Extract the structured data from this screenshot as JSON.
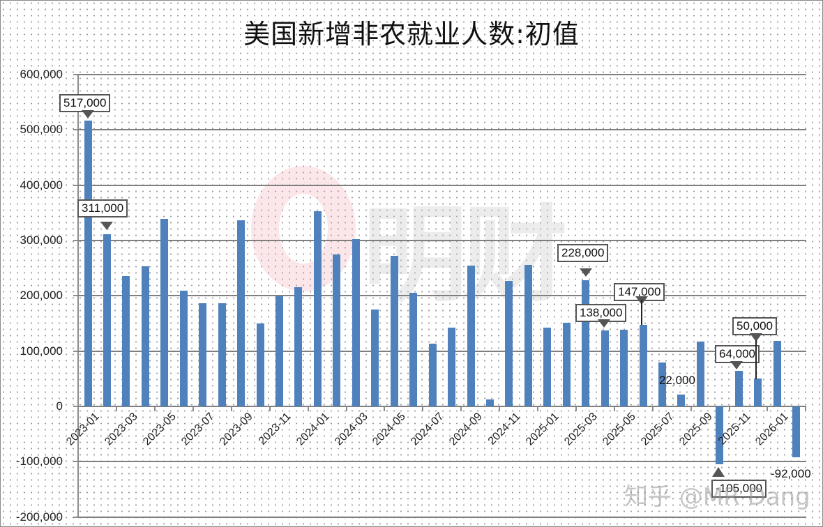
{
  "title": "美国新增非农就业人数:初值",
  "watermarks": {
    "center_text": "明财",
    "bottom_text": "知乎 @MR Dang"
  },
  "colors": {
    "bar": "#4f81bd",
    "grid": "#7f7f7f"
  },
  "y_axis": {
    "ticks": [
      {
        "value": 600000,
        "label": "600,000"
      },
      {
        "value": 500000,
        "label": "500,000"
      },
      {
        "value": 400000,
        "label": "400,000"
      },
      {
        "value": 300000,
        "label": "300,000"
      },
      {
        "value": 200000,
        "label": "200,000"
      },
      {
        "value": 100000,
        "label": "100,000"
      },
      {
        "value": 0,
        "label": "0"
      },
      {
        "value": -100000,
        "label": "-100,000"
      },
      {
        "value": -200000,
        "label": "-200,000"
      }
    ]
  },
  "x_axis": {
    "tick_labels": [
      "2023-01",
      "2023-03",
      "2023-05",
      "2023-07",
      "2023-09",
      "2023-11",
      "2024-01",
      "2024-03",
      "2024-05",
      "2024-07",
      "2024-09",
      "2024-11",
      "2025-01",
      "2025-03",
      "2025-05",
      "2025-07",
      "2025-09",
      "2025-11",
      "2026-01"
    ]
  },
  "annotations": [
    {
      "index": 0,
      "label": "517,000",
      "style": "callout"
    },
    {
      "index": 1,
      "label": "311,000",
      "style": "callout"
    },
    {
      "index": 26,
      "label": "228,000",
      "style": "callout"
    },
    {
      "index": 27,
      "label": "138,000",
      "style": "callout"
    },
    {
      "index": 29,
      "label": "147,000",
      "style": "callout"
    },
    {
      "index": 31,
      "label": "22,000",
      "style": "plain"
    },
    {
      "index": 33,
      "label": "-105,000",
      "style": "callout"
    },
    {
      "index": 34,
      "label": "64,000",
      "style": "callout"
    },
    {
      "index": 35,
      "label": "50,000",
      "style": "callout"
    },
    {
      "index": 37,
      "label": "-92,000",
      "style": "plain"
    }
  ],
  "chart_data": {
    "type": "bar",
    "title": "美国新增非农就业人数:初值",
    "xlabel": "",
    "ylabel": "",
    "ylim": [
      -200000,
      600000
    ],
    "grid": true,
    "legend": "none",
    "categories": [
      "2023-01",
      "2023-02",
      "2023-03",
      "2023-04",
      "2023-05",
      "2023-06",
      "2023-07",
      "2023-08",
      "2023-09",
      "2023-10",
      "2023-11",
      "2023-12",
      "2024-01",
      "2024-02",
      "2024-03",
      "2024-04",
      "2024-05",
      "2024-06",
      "2024-07",
      "2024-08",
      "2024-09",
      "2024-10",
      "2024-11",
      "2024-12",
      "2025-01",
      "2025-02",
      "2025-03",
      "2025-04",
      "2025-05",
      "2025-06",
      "2025-07",
      "2025-08",
      "2025-09",
      "2025-10",
      "2025-11",
      "2025-12",
      "2026-01",
      "2026-02"
    ],
    "values": [
      517000,
      311000,
      236000,
      253000,
      339000,
      209000,
      187000,
      187000,
      336000,
      150000,
      199000,
      216000,
      353000,
      275000,
      303000,
      175000,
      272000,
      206000,
      114000,
      142000,
      254000,
      12000,
      227000,
      256000,
      143000,
      151000,
      228000,
      138000,
      139000,
      147000,
      79000,
      22000,
      117000,
      -105000,
      64000,
      50000,
      119000,
      -92000
    ]
  }
}
